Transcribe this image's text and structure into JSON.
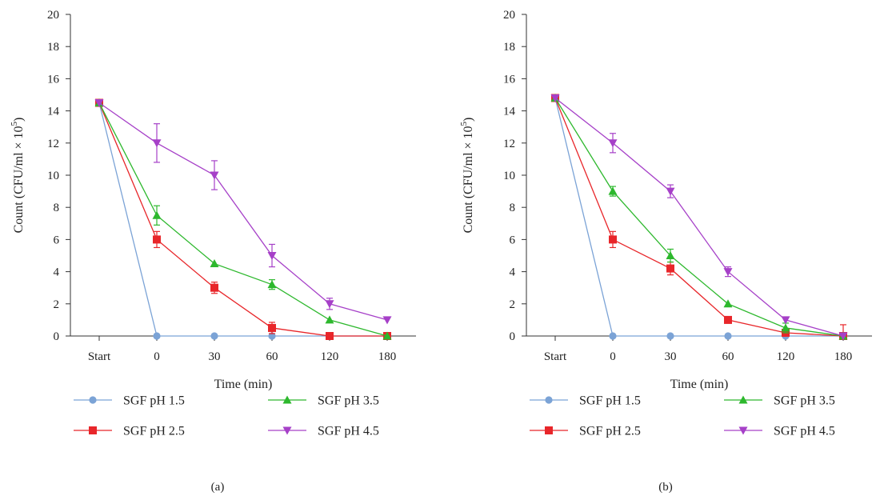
{
  "chart_data": [
    {
      "type": "line",
      "panel_label": "(a)",
      "xlabel": "Time (min)",
      "ylabel_prefix": "Count (CFU/ml × 10",
      "ylabel_exp": "5",
      "ylabel_suffix": ")",
      "categories": [
        "Start",
        "0",
        "30",
        "60",
        "120",
        "180"
      ],
      "ylim": [
        0,
        20
      ],
      "yticks": [
        0,
        2,
        4,
        6,
        8,
        10,
        12,
        14,
        16,
        18,
        20
      ],
      "grid": false,
      "legend_position": "bottom",
      "series": [
        {
          "name": "SGF pH 1.5",
          "color": "#7BA3D6",
          "marker": "circle",
          "values": [
            14.5,
            0,
            0,
            0,
            0,
            0
          ],
          "errors": [
            0,
            0,
            0,
            0,
            0,
            0
          ]
        },
        {
          "name": "SGF pH 2.5",
          "color": "#E8262A",
          "marker": "square",
          "values": [
            14.5,
            6,
            3,
            0.5,
            0,
            0
          ],
          "errors": [
            0,
            0.5,
            0.35,
            0.35,
            0,
            0
          ]
        },
        {
          "name": "SGF pH 3.5",
          "color": "#2DB82D",
          "marker": "triangle-up",
          "values": [
            14.5,
            7.5,
            4.5,
            3.2,
            1,
            0
          ],
          "errors": [
            0,
            0.6,
            0,
            0.3,
            0,
            0
          ]
        },
        {
          "name": "SGF pH 4.5",
          "color": "#A640C8",
          "marker": "triangle-down",
          "values": [
            14.5,
            12,
            10,
            5,
            2,
            1
          ],
          "errors": [
            0,
            1.2,
            0.9,
            0.7,
            0.35,
            0
          ]
        }
      ]
    },
    {
      "type": "line",
      "panel_label": "(b)",
      "xlabel": "Time (min)",
      "ylabel_prefix": "Count (CFU/ml × 10",
      "ylabel_exp": "5",
      "ylabel_suffix": ")",
      "categories": [
        "Start",
        "0",
        "30",
        "60",
        "120",
        "180"
      ],
      "ylim": [
        0,
        20
      ],
      "yticks": [
        0,
        2,
        4,
        6,
        8,
        10,
        12,
        14,
        16,
        18,
        20
      ],
      "grid": false,
      "legend_position": "bottom",
      "series": [
        {
          "name": "SGF pH 1.5",
          "color": "#7BA3D6",
          "marker": "circle",
          "values": [
            14.8,
            0,
            0,
            0,
            0,
            0
          ],
          "errors": [
            0,
            0,
            0,
            0,
            0,
            0
          ]
        },
        {
          "name": "SGF pH 2.5",
          "color": "#E8262A",
          "marker": "square",
          "values": [
            14.8,
            6,
            4.2,
            1,
            0.2,
            0
          ],
          "errors": [
            0,
            0.5,
            0.4,
            0,
            0,
            0.7
          ]
        },
        {
          "name": "SGF pH 3.5",
          "color": "#2DB82D",
          "marker": "triangle-up",
          "values": [
            14.8,
            9,
            5,
            2,
            0.5,
            0
          ],
          "errors": [
            0,
            0.3,
            0.4,
            0,
            0.3,
            0
          ]
        },
        {
          "name": "SGF pH 4.5",
          "color": "#A640C8",
          "marker": "triangle-down",
          "values": [
            14.8,
            12,
            9,
            4,
            1,
            0
          ],
          "errors": [
            0,
            0.6,
            0.4,
            0.3,
            0,
            0
          ]
        }
      ]
    }
  ]
}
